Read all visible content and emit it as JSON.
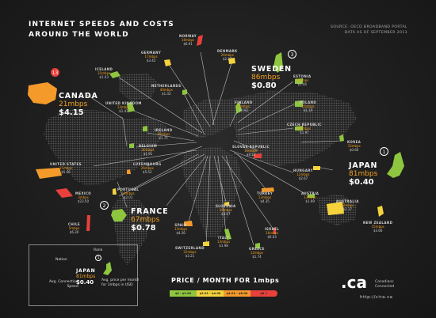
{
  "title_lines": [
    "INTERNET SPEEDS AND COSTS",
    "AROUND THE WORLD"
  ],
  "source_lines": [
    "SOURCE: OECD BROADBAND PORTAL",
    "DATA AS OF SEPTEMBER 2013"
  ],
  "countries": {
    "norway": {
      "name": "NORWAY",
      "speed": "16mbps",
      "price": "$6.91"
    },
    "germany": {
      "name": "GERMANY",
      "speed": "17mbps",
      "price": "$3.42"
    },
    "denmark": {
      "name": "DENMARK",
      "speed": "26mbps",
      "price": "$2.47"
    },
    "iceland": {
      "name": "ICELAND",
      "speed": "21mbps",
      "price": "$1.43"
    },
    "netherlands": {
      "name": "NETHERLANDS",
      "speed": "40mbps",
      "price": "$1.32"
    },
    "estonia": {
      "name": "ESTONIA",
      "speed": "25mbps",
      "price": "$1.44"
    },
    "united_kingdom": {
      "name": "UNITED KINGDOM",
      "speed": "13mbps",
      "price": "$1.43"
    },
    "finland": {
      "name": "FINLAND",
      "speed": "21mbps",
      "price": "$0.92"
    },
    "poland": {
      "name": "POLAND",
      "speed": "21mbps",
      "price": "$1.19"
    },
    "ireland": {
      "name": "IRELAND",
      "speed": "16mbps",
      "price": "$1.71"
    },
    "czech_republic": {
      "name": "CZECH REPUBLIC",
      "speed": "30mbps",
      "price": "$1.97"
    },
    "belgium": {
      "name": "BELGIUM",
      "speed": "30mbps",
      "price": "$1.91"
    },
    "korea": {
      "name": "KOREA",
      "speed": "33mbps",
      "price": "$0.66"
    },
    "slovak_republic": {
      "name": "SLOVAK REPUBLIC",
      "speed": "16mbps",
      "price": "$4.14"
    },
    "united_states": {
      "name": "UNITED STATES",
      "speed": "15mbps",
      "price": "$5.66"
    },
    "luxembourg": {
      "name": "LUXEMBOURG",
      "speed": "26mbps",
      "price": "$5.52"
    },
    "hungary": {
      "name": "HUNGARY",
      "speed": "12mbps",
      "price": "$2.67"
    },
    "mexico": {
      "name": "MEXICO",
      "speed": "3mbps",
      "price": "$23.50"
    },
    "portugal": {
      "name": "PORTUGAL",
      "speed": "18mbps",
      "price": "$2.01"
    },
    "turkey": {
      "name": "TURKEY",
      "speed": "13mbps",
      "price": "$4.35"
    },
    "austria": {
      "name": "AUSTRIA",
      "speed": "13mbps",
      "price": "$1.99"
    },
    "australia": {
      "name": "AUSTRALIA",
      "speed": "22mbps",
      "price": "$2.17"
    },
    "slovenia": {
      "name": "SLOVENIA",
      "speed": "10mbps",
      "price": "$3.67"
    },
    "chile": {
      "name": "CHILE",
      "speed": "5mbps",
      "price": "$6.30"
    },
    "spain": {
      "name": "SPAIN",
      "speed": "13mbps",
      "price": "$4.26"
    },
    "israel": {
      "name": "ISRAEL",
      "speed": "16mbps",
      "price": "$6.03"
    },
    "new_zealand": {
      "name": "NEW ZEALAND",
      "speed": "15mbps",
      "price": "$3.66"
    },
    "italy": {
      "name": "ITALY",
      "speed": "13mbps",
      "price": "$1.98"
    },
    "switzerland": {
      "name": "SWITZERLAND",
      "speed": "22mbps",
      "price": "$3.21"
    },
    "greece": {
      "name": "GREECE",
      "speed": "12mbps",
      "price": "$1.74"
    }
  },
  "featured": {
    "canada": {
      "name": "CANADA",
      "speed": "21mbps",
      "price": "$4.15",
      "rank": "13"
    },
    "sweden": {
      "name": "SWEDEN",
      "speed": "86mbps",
      "price": "$0.80",
      "rank": "3"
    },
    "japan": {
      "name": "JAPAN",
      "speed": "81mbps",
      "price": "$0.40",
      "rank": "1"
    },
    "france": {
      "name": "FRANCE",
      "speed": "67mbps",
      "price": "$0.78",
      "rank": "2"
    }
  },
  "key": {
    "rank_label": "Rank",
    "rank_value": "1",
    "nation_label": "Nation",
    "country": "JAPAN",
    "speed": "81mbps",
    "price": "$0.40",
    "speed_label_lines": [
      "Avg. Connection",
      "Speed"
    ],
    "price_label_lines": [
      "Avg. price per month",
      "for 1mbps in USD"
    ]
  },
  "price_scale": {
    "title": "PRICE / MONTH  FOR 1mbps",
    "ranges": [
      {
        "label": "$0 - $2.00",
        "color": "#8ec63f"
      },
      {
        "label": "$2.01 - $4.00",
        "color": "#f5d33b"
      },
      {
        "label": "$4.01 - $6.00",
        "color": "#f39a2b"
      },
      {
        "label": "$6 +",
        "color": "#e8413c"
      }
    ]
  },
  "brand": {
    "logo": ".ca",
    "name_lines": [
      "Canadians",
      "Connected"
    ],
    "url": "http://cira.ca"
  }
}
